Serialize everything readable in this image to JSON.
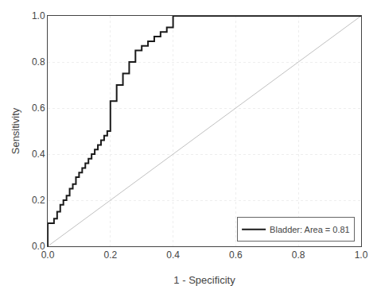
{
  "chart_data": {
    "type": "line",
    "xlabel": "1 - Specificity",
    "ylabel": "Sensitivity",
    "series": [
      {
        "color": "#c0c0c0",
        "line_style": "solid",
        "x": [
          0.0,
          1.0
        ],
        "values": [
          0.0,
          1.0
        ]
      },
      {
        "name": "Bladder: Area = 0.81",
        "color": "#1a1a1a",
        "line_style": "step",
        "x": [
          0.0,
          0.0,
          0.02,
          0.03,
          0.04,
          0.05,
          0.06,
          0.07,
          0.08,
          0.09,
          0.1,
          0.11,
          0.12,
          0.13,
          0.14,
          0.15,
          0.16,
          0.17,
          0.18,
          0.19,
          0.2,
          0.2,
          0.22,
          0.24,
          0.26,
          0.28,
          0.3,
          0.32,
          0.34,
          0.36,
          0.38,
          0.4,
          1.0
        ],
        "values": [
          0.0,
          0.1,
          0.12,
          0.15,
          0.18,
          0.2,
          0.22,
          0.25,
          0.27,
          0.3,
          0.32,
          0.34,
          0.36,
          0.38,
          0.4,
          0.42,
          0.44,
          0.46,
          0.48,
          0.5,
          0.5,
          0.63,
          0.7,
          0.75,
          0.8,
          0.85,
          0.87,
          0.89,
          0.91,
          0.93,
          0.95,
          1.0,
          1.0
        ]
      }
    ],
    "xlim": [
      0.0,
      1.0
    ],
    "ylim": [
      0.0,
      1.0
    ],
    "xticks": [
      {
        "value": 0.0,
        "label": "0.0"
      },
      0.2,
      0.4,
      0.6,
      0.8,
      {
        "value": 1.0,
        "label": "1.0"
      }
    ],
    "yticks": [
      {
        "value": 0.0,
        "label": "0.0"
      },
      0.2,
      0.4,
      0.6,
      0.8,
      {
        "value": 1.0,
        "label": "1.0"
      }
    ],
    "grid": true,
    "legend": "lower right"
  }
}
